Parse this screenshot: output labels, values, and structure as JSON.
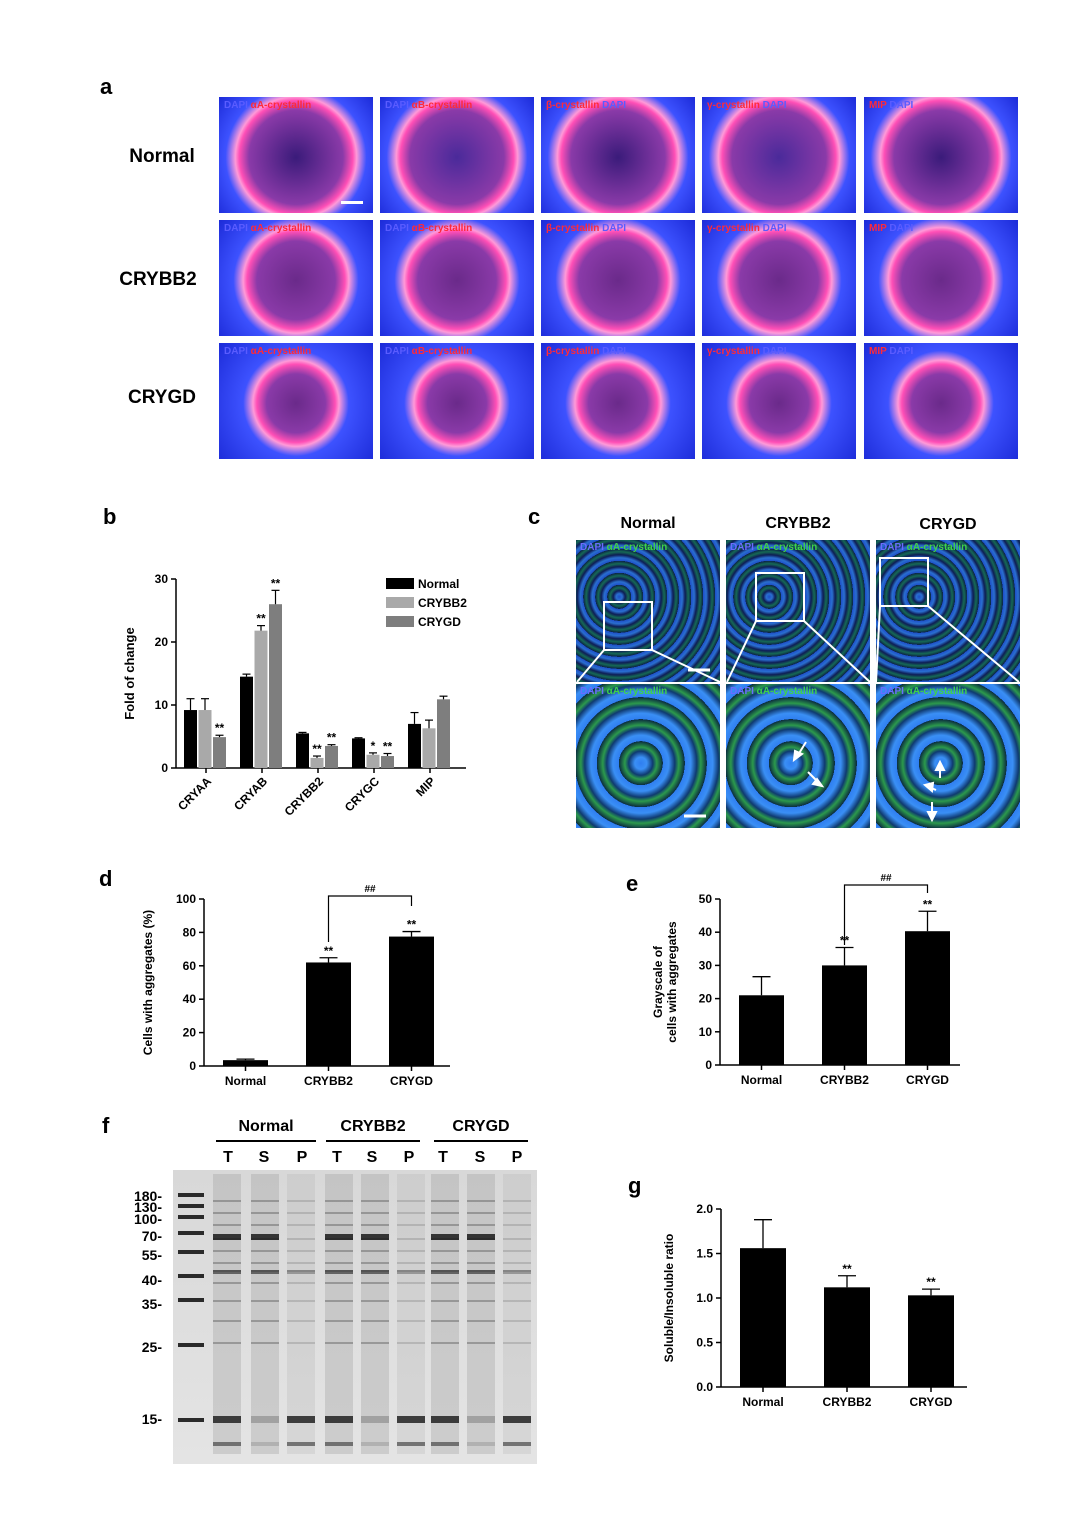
{
  "panels": {
    "a": "a",
    "b": "b",
    "c": "c",
    "d": "d",
    "e": "e",
    "f": "f",
    "g": "g"
  },
  "panel_a": {
    "rows": [
      "Normal",
      "CRYBB2",
      "CRYGD"
    ],
    "columns": [
      {
        "first": "DAPI",
        "second": "αA-crystallin",
        "first_color": "blue"
      },
      {
        "first": "DAPI",
        "second": "αB-crystallin",
        "first_color": "blue"
      },
      {
        "first": "β-crystallin",
        "second": "DAPI",
        "first_color": "red"
      },
      {
        "first": "γ-crystallin",
        "second": "DAPI",
        "first_color": "red"
      },
      {
        "first": "MIP",
        "second": "DAPI",
        "first_color": "red"
      }
    ]
  },
  "panel_c": {
    "columns": [
      "Normal",
      "CRYBB2",
      "CRYGD"
    ],
    "label_first": "DAPI",
    "label_second": "αA-crystallin"
  },
  "chart_data": [
    {
      "panel": "b",
      "type": "bar",
      "ylabel": "Fold of change",
      "ylim": [
        0,
        30
      ],
      "yticks": [
        0,
        10,
        20,
        30
      ],
      "categories": [
        "CRYAA",
        "CRYAB",
        "CRYBB2",
        "CRYGC",
        "MIP"
      ],
      "legend_position": "top-right",
      "series": [
        {
          "name": "Normal",
          "color": "#000000",
          "values": [
            9.2,
            14.5,
            5.5,
            4.7,
            7.0
          ],
          "errors": [
            1.8,
            0.4,
            0.15,
            0.1,
            1.8
          ],
          "sig": [
            "",
            "",
            "",
            "",
            ""
          ]
        },
        {
          "name": "CRYBB2",
          "color": "#a9a9a9",
          "values": [
            9.2,
            21.8,
            1.6,
            2.1,
            6.3
          ],
          "errors": [
            1.8,
            0.8,
            0.3,
            0.3,
            1.3
          ],
          "sig": [
            "",
            "**",
            "**",
            "*",
            ""
          ]
        },
        {
          "name": "CRYGD",
          "color": "#7e7e7e",
          "values": [
            4.9,
            26.0,
            3.5,
            1.9,
            10.9
          ],
          "errors": [
            0.3,
            2.2,
            0.2,
            0.4,
            0.5
          ],
          "sig": [
            "**",
            "**",
            "**",
            "**",
            ""
          ]
        }
      ]
    },
    {
      "panel": "d",
      "type": "bar",
      "ylabel": "Cells with aggregates (%)",
      "ylim": [
        0,
        100
      ],
      "yticks": [
        0,
        20,
        40,
        60,
        80,
        100
      ],
      "categories": [
        "Normal",
        "CRYBB2",
        "CRYGD"
      ],
      "values": [
        3.5,
        62,
        77.5
      ],
      "errors": [
        0.6,
        2.8,
        3.0
      ],
      "sig": [
        "",
        "**",
        "**"
      ],
      "bracket": {
        "from": 1,
        "to": 2,
        "label": "##"
      }
    },
    {
      "panel": "e",
      "type": "bar",
      "ylabel": "Grayscale of",
      "ylabel2": "cells with aggregates",
      "ylim": [
        0,
        50
      ],
      "yticks": [
        0,
        10,
        20,
        30,
        40,
        50
      ],
      "categories": [
        "Normal",
        "CRYBB2",
        "CRYGD"
      ],
      "values": [
        21,
        30,
        40.3
      ],
      "errors": [
        5.6,
        5.4,
        6.0
      ],
      "sig": [
        "",
        "**",
        "**"
      ],
      "bracket": {
        "from": 1,
        "to": 2,
        "label": "##"
      }
    },
    {
      "panel": "g",
      "type": "bar",
      "ylabel": "Soluble/Insoluble ratio",
      "ylim": [
        0,
        2.0
      ],
      "yticks": [
        0.0,
        0.5,
        1.0,
        1.5,
        2.0
      ],
      "ytick_labels": [
        "0.0",
        "0.5",
        "1.0",
        "1.5",
        "2.0"
      ],
      "categories": [
        "Normal",
        "CRYBB2",
        "CRYGD"
      ],
      "values": [
        1.56,
        1.12,
        1.03
      ],
      "errors": [
        0.32,
        0.13,
        0.07
      ],
      "sig": [
        "",
        "**",
        "**"
      ]
    }
  ],
  "panel_f": {
    "groups": [
      "Normal",
      "CRYBB2",
      "CRYGD"
    ],
    "lanes": [
      "T",
      "S",
      "P",
      "T",
      "S",
      "P",
      "T",
      "S",
      "P"
    ],
    "markers": [
      "180-",
      "130-",
      "100-",
      "70-",
      "55-",
      "40-",
      "35-",
      "25-",
      "15-"
    ]
  }
}
